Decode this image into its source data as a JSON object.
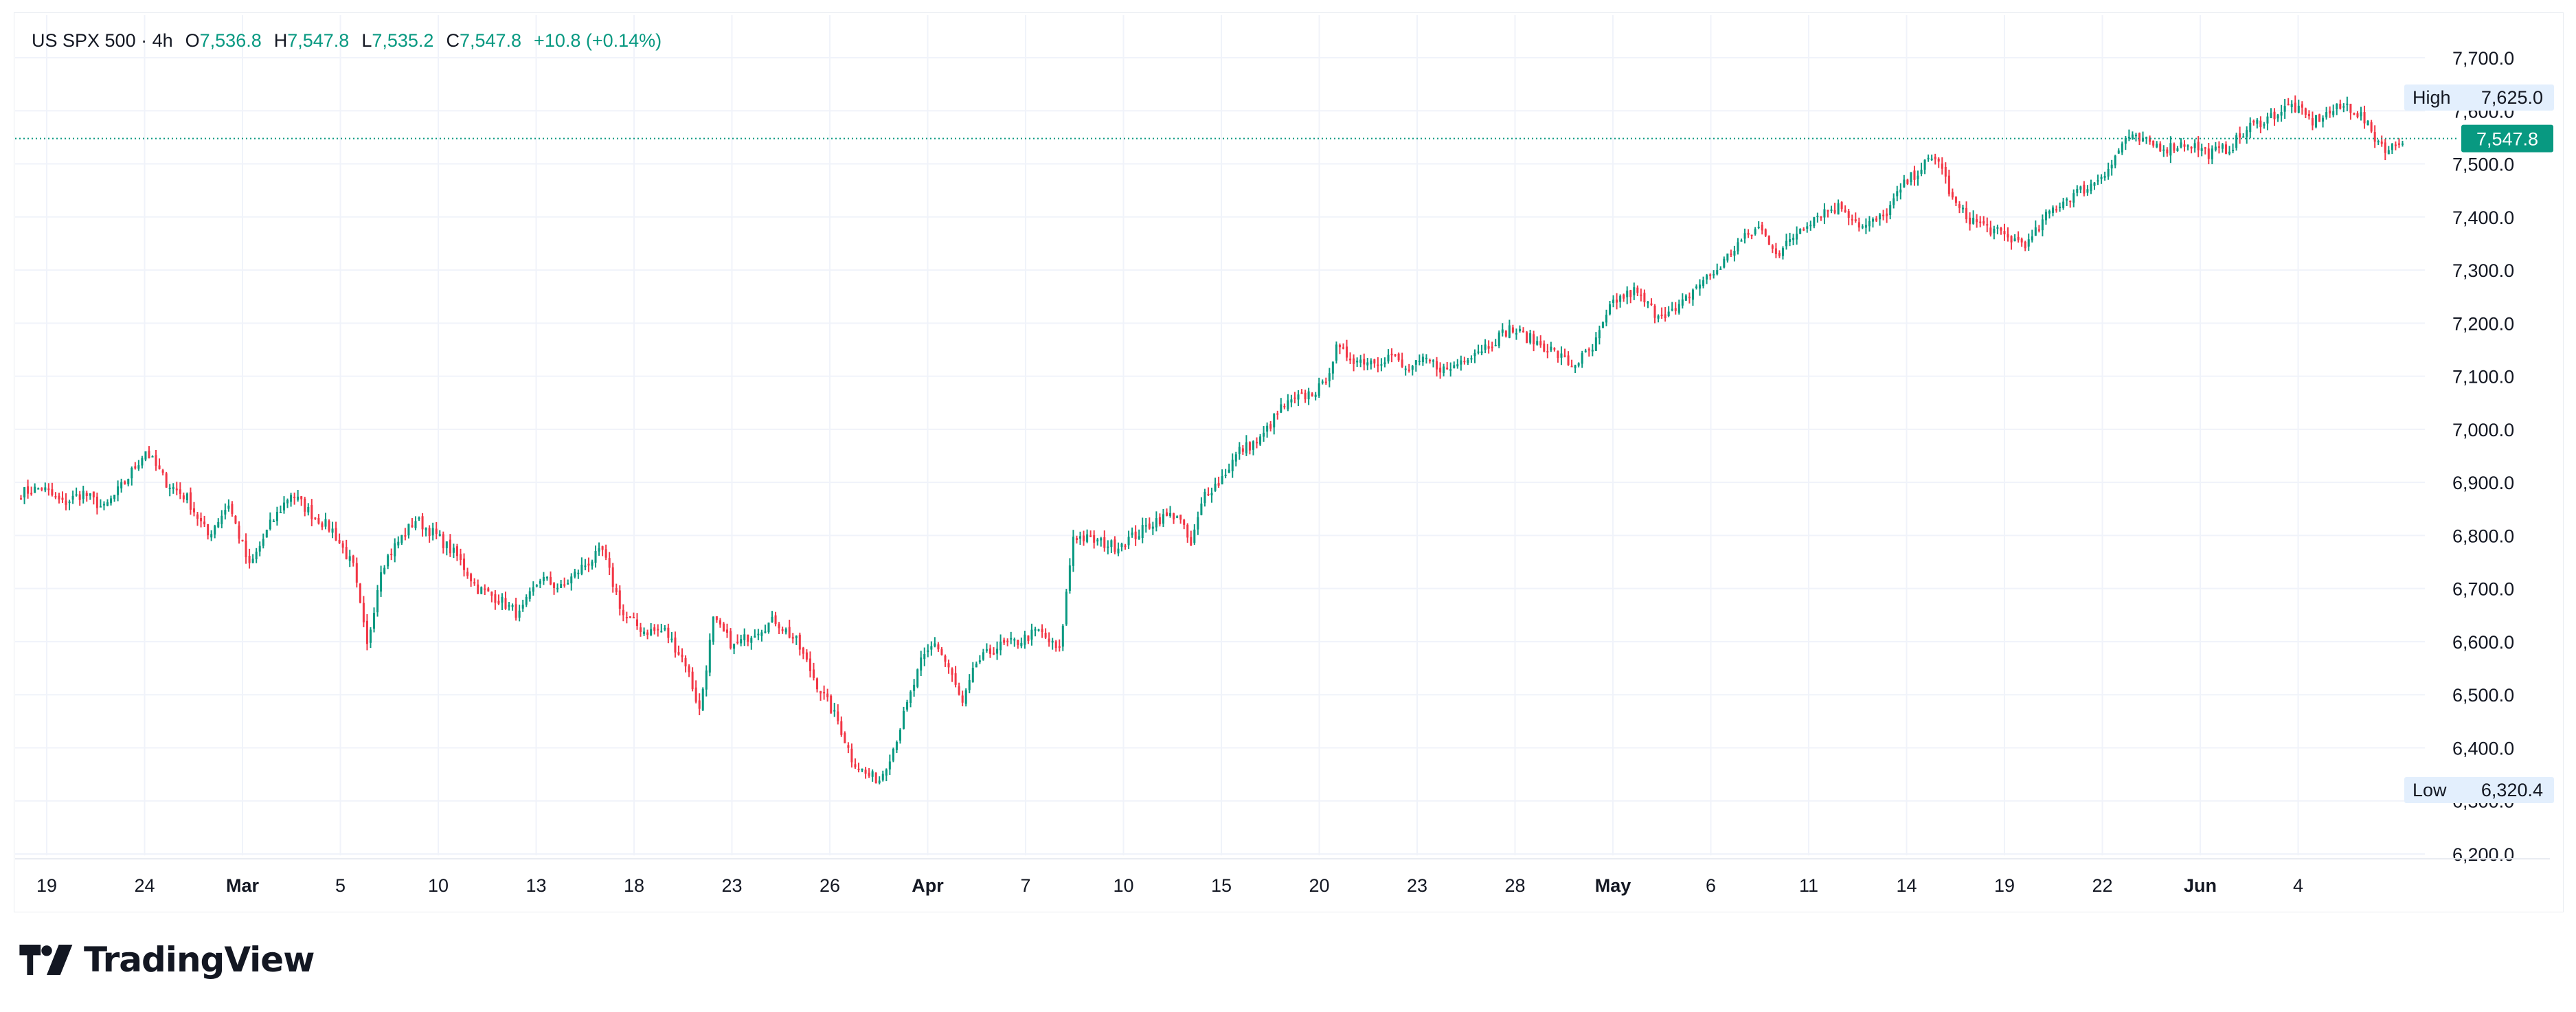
{
  "header": {
    "symbol": "US SPX 500 · 4h",
    "open_label": "O",
    "open": "7,536.8",
    "high_label": "H",
    "high": "7,547.8",
    "low_label": "L",
    "low": "7,535.2",
    "close_label": "C",
    "close": "7,547.8",
    "change": "+10.8 (+0.14%)"
  },
  "brand": {
    "name": "TradingView"
  },
  "colors": {
    "up": "#089981",
    "down": "#f23645",
    "grid": "#f0f3fa",
    "text": "#131722",
    "badge_bg": "#e3effd"
  },
  "chart_data": {
    "type": "candlestick",
    "interval": "4h",
    "y_ticks": [
      "6,200.0",
      "6,300.0",
      "6,400.0",
      "6,500.0",
      "6,600.0",
      "6,700.0",
      "6,800.0",
      "6,900.0",
      "7,000.0",
      "7,100.0",
      "7,200.0",
      "7,300.0",
      "7,400.0",
      "7,500.0",
      "7,600.0",
      "7,700.0"
    ],
    "ylim": [
      6180,
      7740
    ],
    "x_ticks": [
      "19",
      "24",
      "Mar",
      "5",
      "10",
      "13",
      "18",
      "23",
      "26",
      "Apr",
      "7",
      "10",
      "15",
      "20",
      "23",
      "28",
      "May",
      "6",
      "11",
      "14",
      "19",
      "22",
      "Jun",
      "4"
    ],
    "x_ticks_bold": [
      "Mar",
      "Apr",
      "May",
      "Jun"
    ],
    "high_marker": {
      "label": "High",
      "value": "7,625.0"
    },
    "low_marker": {
      "label": "Low",
      "value": "6,320.4"
    },
    "last_price": {
      "value": "7,547.8"
    },
    "path_anchors": [
      [
        0,
        6880
      ],
      [
        6,
        6890
      ],
      [
        12,
        6860
      ],
      [
        18,
        6880
      ],
      [
        24,
        6850
      ],
      [
        30,
        6900
      ],
      [
        36,
        6960
      ],
      [
        42,
        6900
      ],
      [
        48,
        6870
      ],
      [
        54,
        6800
      ],
      [
        60,
        6860
      ],
      [
        66,
        6740
      ],
      [
        72,
        6820
      ],
      [
        78,
        6880
      ],
      [
        84,
        6840
      ],
      [
        90,
        6810
      ],
      [
        96,
        6740
      ],
      [
        100,
        6590
      ],
      [
        104,
        6740
      ],
      [
        108,
        6780
      ],
      [
        114,
        6830
      ],
      [
        120,
        6800
      ],
      [
        126,
        6760
      ],
      [
        132,
        6700
      ],
      [
        138,
        6680
      ],
      [
        144,
        6650
      ],
      [
        150,
        6720
      ],
      [
        156,
        6700
      ],
      [
        162,
        6740
      ],
      [
        168,
        6770
      ],
      [
        174,
        6650
      ],
      [
        180,
        6620
      ],
      [
        186,
        6620
      ],
      [
        192,
        6560
      ],
      [
        196,
        6470
      ],
      [
        200,
        6640
      ],
      [
        206,
        6590
      ],
      [
        212,
        6620
      ],
      [
        218,
        6640
      ],
      [
        224,
        6600
      ],
      [
        230,
        6520
      ],
      [
        236,
        6450
      ],
      [
        240,
        6380
      ],
      [
        244,
        6350
      ],
      [
        248,
        6340
      ],
      [
        252,
        6400
      ],
      [
        256,
        6480
      ],
      [
        260,
        6560
      ],
      [
        264,
        6600
      ],
      [
        268,
        6550
      ],
      [
        272,
        6480
      ],
      [
        276,
        6560
      ],
      [
        282,
        6590
      ],
      [
        288,
        6600
      ],
      [
        294,
        6620
      ],
      [
        300,
        6580
      ],
      [
        304,
        6800
      ],
      [
        310,
        6790
      ],
      [
        316,
        6780
      ],
      [
        322,
        6800
      ],
      [
        328,
        6830
      ],
      [
        334,
        6840
      ],
      [
        338,
        6780
      ],
      [
        342,
        6880
      ],
      [
        346,
        6900
      ],
      [
        352,
        6960
      ],
      [
        358,
        6980
      ],
      [
        364,
        7040
      ],
      [
        370,
        7060
      ],
      [
        376,
        7080
      ],
      [
        380,
        7150
      ],
      [
        386,
        7130
      ],
      [
        392,
        7130
      ],
      [
        396,
        7140
      ],
      [
        400,
        7110
      ],
      [
        406,
        7130
      ],
      [
        412,
        7110
      ],
      [
        418,
        7140
      ],
      [
        424,
        7160
      ],
      [
        430,
        7190
      ],
      [
        436,
        7170
      ],
      [
        442,
        7150
      ],
      [
        448,
        7120
      ],
      [
        454,
        7150
      ],
      [
        460,
        7240
      ],
      [
        466,
        7260
      ],
      [
        472,
        7220
      ],
      [
        478,
        7220
      ],
      [
        484,
        7270
      ],
      [
        490,
        7300
      ],
      [
        496,
        7350
      ],
      [
        502,
        7380
      ],
      [
        508,
        7330
      ],
      [
        514,
        7380
      ],
      [
        520,
        7410
      ],
      [
        526,
        7420
      ],
      [
        532,
        7380
      ],
      [
        538,
        7400
      ],
      [
        544,
        7460
      ],
      [
        550,
        7500
      ],
      [
        554,
        7510
      ],
      [
        558,
        7430
      ],
      [
        562,
        7400
      ],
      [
        568,
        7380
      ],
      [
        574,
        7360
      ],
      [
        580,
        7350
      ],
      [
        586,
        7410
      ],
      [
        592,
        7440
      ],
      [
        598,
        7460
      ],
      [
        604,
        7500
      ],
      [
        608,
        7550
      ],
      [
        614,
        7540
      ],
      [
        620,
        7530
      ],
      [
        626,
        7540
      ],
      [
        632,
        7520
      ],
      [
        638,
        7530
      ],
      [
        644,
        7570
      ],
      [
        650,
        7590
      ],
      [
        656,
        7610
      ],
      [
        662,
        7580
      ],
      [
        668,
        7600
      ],
      [
        672,
        7610
      ],
      [
        676,
        7590
      ],
      [
        680,
        7550
      ],
      [
        684,
        7525
      ],
      [
        688,
        7548
      ]
    ]
  }
}
